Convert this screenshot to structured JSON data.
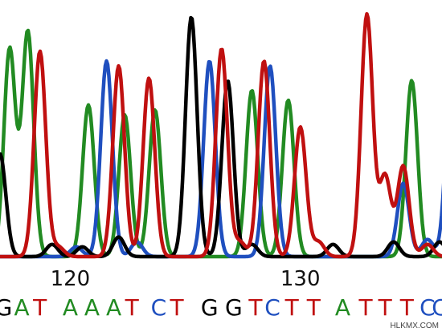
{
  "chart_data": {
    "type": "line",
    "series": [
      {
        "name": "A",
        "color": "#228b22",
        "peaks": [
          0.5,
          2.0,
          7.0,
          10.0,
          12.5,
          20.5,
          23.5,
          33.7
        ],
        "heights": [
          0.85,
          0.92,
          0.62,
          0.58,
          0.6,
          0.68,
          0.64,
          0.72
        ]
      },
      {
        "name": "C",
        "color": "#1f4fbf",
        "peaks": [
          6.0,
          8.5,
          11.0,
          17.0,
          22.0,
          33.0,
          35.0,
          37.0
        ],
        "heights": [
          0.04,
          0.8,
          0.06,
          0.8,
          0.78,
          0.3,
          0.07,
          0.75
        ]
      },
      {
        "name": "G",
        "color": "#000000",
        "peaks": [
          -0.3,
          4.0,
          6.5,
          9.5,
          15.5,
          18.5,
          20.5,
          27.2,
          32.2,
          36.0
        ],
        "heights": [
          0.42,
          0.05,
          0.04,
          0.08,
          0.98,
          0.72,
          0.05,
          0.05,
          0.06,
          0.06
        ]
      },
      {
        "name": "T",
        "color": "#c01010",
        "peaks": [
          3.0,
          4.5,
          9.5,
          12.0,
          18.0,
          19.5,
          21.5,
          24.5,
          26.0,
          30.0,
          31.5,
          33.0,
          35.0
        ],
        "heights": [
          0.84,
          0.04,
          0.78,
          0.73,
          0.85,
          0.06,
          0.8,
          0.53,
          0.06,
          0.99,
          0.33,
          0.37,
          0.05
        ]
      }
    ],
    "x_ticks": [
      {
        "label": "120",
        "pos": 5.5
      },
      {
        "label": "130",
        "pos": 24.5
      }
    ],
    "bases": [
      {
        "base": "G",
        "pos": 0.0
      },
      {
        "base": "A",
        "pos": 1.5
      },
      {
        "base": "T",
        "pos": 3.0
      },
      {
        "base": "A",
        "pos": 5.5
      },
      {
        "base": "A",
        "pos": 7.3
      },
      {
        "base": "A",
        "pos": 9.1
      },
      {
        "base": "T",
        "pos": 10.6
      },
      {
        "base": "C",
        "pos": 12.8
      },
      {
        "base": "T",
        "pos": 14.3
      },
      {
        "base": "G",
        "pos": 17.0
      },
      {
        "base": "G",
        "pos": 19.0
      },
      {
        "base": "T",
        "pos": 20.8
      },
      {
        "base": "C",
        "pos": 22.2
      },
      {
        "base": "T",
        "pos": 23.8
      },
      {
        "base": "T",
        "pos": 25.6
      },
      {
        "base": "A",
        "pos": 28.0
      },
      {
        "base": "T",
        "pos": 29.9
      },
      {
        "base": "T",
        "pos": 31.5
      },
      {
        "base": "T",
        "pos": 33.3
      },
      {
        "base": "C",
        "pos": 35.0
      },
      {
        "base": "C",
        "pos": 36.0
      }
    ],
    "base_colors": {
      "A": "#228b22",
      "C": "#1f4fbf",
      "G": "#000000",
      "T": "#c01010"
    },
    "x_range": [
      -0.3,
      36.2
    ],
    "grid": false,
    "legend": "none"
  },
  "watermark": "HLKMX.COM"
}
